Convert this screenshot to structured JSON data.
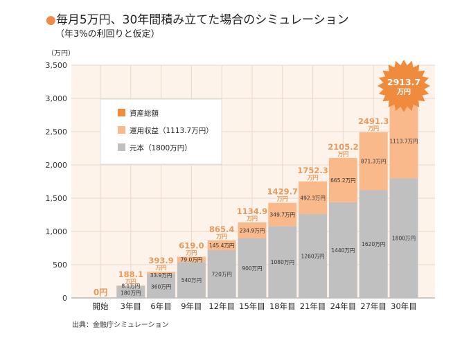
{
  "header": {
    "title": "毎月5万円、30年間積み立てた場合のシミュレーション",
    "subtitle": "（年3%の利回りと仮定）"
  },
  "source": "出典：金融庁シミュレーション",
  "colors": {
    "total": "#f08a3c",
    "gain": "#f9b98a",
    "principal": "#c0c0c0",
    "plot_bg": "#fdf3ea",
    "grid": "#e8d9cc",
    "total_label": "#e79a5c"
  },
  "chart_data": {
    "type": "bar",
    "stacked": true,
    "ylabel": "（万円）",
    "ylim": [
      0,
      3500
    ],
    "yticks": [
      0,
      500,
      1000,
      1500,
      2000,
      2500,
      3000,
      3500
    ],
    "ytick_labels": [
      "0",
      "500",
      "1,000",
      "1,500",
      "2,000",
      "2,500",
      "3,000",
      "3,500"
    ],
    "grid": true,
    "legend_position": "top-left",
    "categories": [
      "開始",
      "3年目",
      "6年目",
      "9年目",
      "12年目",
      "15年目",
      "18年目",
      "21年目",
      "24年目",
      "27年目",
      "30年目"
    ],
    "series": [
      {
        "name": "元本（1800万円）",
        "values": [
          0,
          180,
          360,
          540,
          720,
          900,
          1080,
          1260,
          1440,
          1620,
          1800
        ],
        "labels": [
          "",
          "180万円",
          "360万円",
          "540万円",
          "720万円",
          "900万円",
          "1080万円",
          "1260万円",
          "1440万円",
          "1620万円",
          "1800万円"
        ]
      },
      {
        "name": "運用収益（1113.7万円）",
        "values": [
          0,
          8.1,
          33.9,
          79.0,
          145.4,
          234.9,
          349.7,
          492.3,
          665.2,
          871.3,
          1113.7
        ],
        "labels": [
          "",
          "8.1万円",
          "33.9万円",
          "79.0万円",
          "145.4万円",
          "234.9万円",
          "349.7万円",
          "492.3万円",
          "665.2万円",
          "871.3万円",
          "1113.7万円"
        ]
      }
    ],
    "totals": {
      "name": "資産総額",
      "values": [
        0,
        188.1,
        393.9,
        619.0,
        865.4,
        1134.9,
        1429.7,
        1752.3,
        2105.2,
        2491.3,
        2913.7
      ],
      "labels": [
        "0円",
        "188.1",
        "393.9",
        "619.0",
        "865.4",
        "1134.9",
        "1429.7",
        "1752.3",
        "2105.2",
        "2491.3",
        "2913.7"
      ],
      "unit": "万円"
    }
  }
}
